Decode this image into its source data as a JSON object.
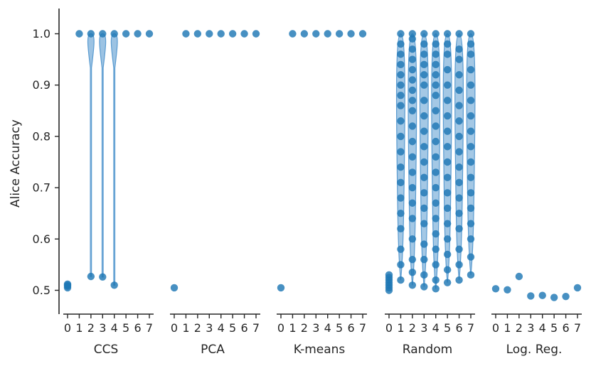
{
  "chart_data": {
    "type": "scatter",
    "ylabel": "Alice Accuracy",
    "ylim": [
      0.45,
      1.05
    ],
    "yticks": [
      0.5,
      0.6,
      0.7,
      0.8,
      0.9,
      1.0
    ],
    "ytick_labels": [
      "0.5",
      "0.6",
      "0.7",
      "0.8",
      "0.9",
      "1.0"
    ],
    "point_color": "#1f77b4",
    "violin_color": "#5a9bd0",
    "axis_color": "#262626",
    "panels": [
      {
        "label": "CCS",
        "categories": [
          "0",
          "1",
          "2",
          "3",
          "4",
          "5",
          "6",
          "7"
        ],
        "points": [
          [
            0.505,
            0.508,
            0.51,
            0.512
          ],
          [
            1.0
          ],
          [
            1.0,
            0.527
          ],
          [
            1.0,
            0.526
          ],
          [
            1.0,
            0.51
          ],
          [
            1.0
          ],
          [
            1.0
          ],
          [
            1.0
          ]
        ]
      },
      {
        "label": "PCA",
        "categories": [
          "0",
          "1",
          "2",
          "3",
          "4",
          "5",
          "6",
          "7"
        ],
        "points": [
          [
            0.505
          ],
          [
            1.0
          ],
          [
            1.0
          ],
          [
            1.0
          ],
          [
            1.0
          ],
          [
            1.0
          ],
          [
            1.0
          ],
          [
            1.0
          ]
        ]
      },
      {
        "label": "K-means",
        "categories": [
          "0",
          "1",
          "2",
          "3",
          "4",
          "5",
          "6",
          "7"
        ],
        "points": [
          [
            0.505
          ],
          [
            1.0
          ],
          [
            1.0
          ],
          [
            1.0
          ],
          [
            1.0
          ],
          [
            1.0
          ],
          [
            1.0
          ],
          [
            1.0
          ]
        ]
      },
      {
        "label": "Random",
        "categories": [
          "0",
          "1",
          "2",
          "3",
          "4",
          "5",
          "6",
          "7"
        ],
        "points": [
          [
            0.5,
            0.505,
            0.51,
            0.515,
            0.52,
            0.525,
            0.53
          ],
          [
            0.52,
            0.55,
            0.58,
            0.62,
            0.65,
            0.68,
            0.71,
            0.74,
            0.77,
            0.8,
            0.83,
            0.86,
            0.88,
            0.9,
            0.92,
            0.94,
            0.96,
            0.98,
            1.0
          ],
          [
            0.51,
            0.535,
            0.56,
            0.6,
            0.64,
            0.67,
            0.7,
            0.73,
            0.76,
            0.79,
            0.82,
            0.85,
            0.87,
            0.89,
            0.91,
            0.93,
            0.95,
            0.97,
            0.99,
            1.0
          ],
          [
            0.507,
            0.53,
            0.56,
            0.59,
            0.63,
            0.66,
            0.69,
            0.72,
            0.75,
            0.78,
            0.81,
            0.84,
            0.87,
            0.9,
            0.92,
            0.94,
            0.96,
            0.98,
            1.0
          ],
          [
            0.503,
            0.52,
            0.55,
            0.58,
            0.61,
            0.64,
            0.67,
            0.7,
            0.73,
            0.76,
            0.79,
            0.82,
            0.85,
            0.88,
            0.9,
            0.92,
            0.94,
            0.96,
            0.98,
            1.0
          ],
          [
            0.515,
            0.54,
            0.57,
            0.6,
            0.63,
            0.66,
            0.69,
            0.72,
            0.75,
            0.78,
            0.81,
            0.84,
            0.87,
            0.9,
            0.93,
            0.96,
            0.98,
            1.0
          ],
          [
            0.52,
            0.55,
            0.58,
            0.62,
            0.65,
            0.68,
            0.71,
            0.74,
            0.77,
            0.8,
            0.83,
            0.86,
            0.89,
            0.92,
            0.95,
            0.97,
            1.0
          ],
          [
            0.53,
            0.565,
            0.6,
            0.63,
            0.66,
            0.69,
            0.72,
            0.75,
            0.78,
            0.81,
            0.84,
            0.87,
            0.9,
            0.93,
            0.96,
            0.98,
            1.0
          ]
        ]
      },
      {
        "label": "Log. Reg.",
        "categories": [
          "0",
          "1",
          "2",
          "3",
          "4",
          "5",
          "6",
          "7"
        ],
        "points": [
          [
            0.503
          ],
          [
            0.501
          ],
          [
            0.527
          ],
          [
            0.489
          ],
          [
            0.49
          ],
          [
            0.486
          ],
          [
            0.488
          ],
          [
            0.505
          ]
        ]
      }
    ]
  }
}
